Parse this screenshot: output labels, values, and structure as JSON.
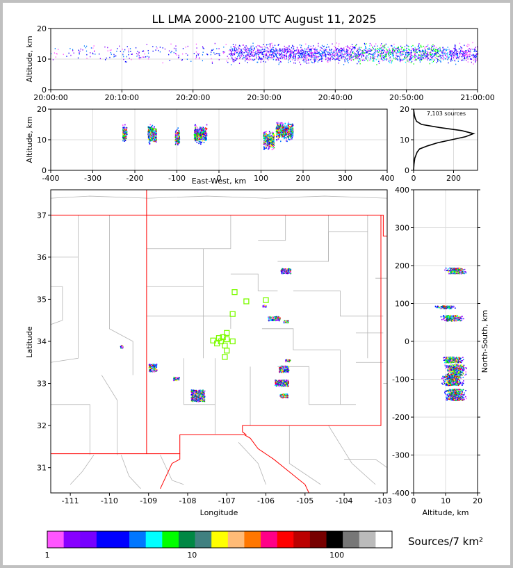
{
  "chart_data": [
    {
      "type": "scatter",
      "panel": "altitude-time",
      "title": "LL LMA 2000-2100 UTC August 11, 2025",
      "xlabel": "",
      "ylabel": "Altitude, km",
      "xlim": [
        0,
        60
      ],
      "ylim": [
        0,
        20
      ],
      "x_tick_labels": [
        "20:00:00",
        "20:10:00",
        "20:20:00",
        "20:30:00",
        "20:40:00",
        "20:50:00",
        "21:00:00"
      ],
      "x_tick_values": [
        0,
        10,
        20,
        30,
        40,
        50,
        60
      ],
      "y_ticks": [
        0,
        10,
        20
      ],
      "grid": true,
      "x_units": "minutes after 20:00:00 UTC"
    },
    {
      "type": "scatter",
      "panel": "altitude-eastwest",
      "xlabel": "East-West, km",
      "ylabel": "Altitude, km",
      "xlim": [
        -400,
        400
      ],
      "ylim": [
        0,
        20
      ],
      "x_ticks": [
        -400,
        -300,
        -200,
        -100,
        0,
        100,
        200,
        300,
        400
      ],
      "y_ticks": [
        0,
        10,
        20
      ],
      "grid": true,
      "clusters": [
        {
          "x_min": -230,
          "x_max": -220,
          "alt_center": 12
        },
        {
          "x_min": -170,
          "x_max": -150,
          "alt_center": 12
        },
        {
          "x_min": -105,
          "x_max": -95,
          "alt_center": 11
        },
        {
          "x_min": -60,
          "x_max": -30,
          "alt_center": 12
        },
        {
          "x_min": 105,
          "x_max": 130,
          "alt_center": 10
        },
        {
          "x_min": 135,
          "x_max": 175,
          "alt_center": 13
        }
      ]
    },
    {
      "type": "line",
      "panel": "altitude-histogram",
      "annotation": "7,103 sources",
      "xlim": [
        0,
        320
      ],
      "ylim": [
        0,
        20
      ],
      "x_ticks": [
        0,
        200
      ],
      "y_ticks": [
        0,
        10,
        20
      ],
      "grid": true,
      "altitude": [
        0,
        2,
        4,
        6,
        7,
        8,
        9,
        10,
        11,
        12,
        13,
        14,
        15,
        16,
        17,
        18,
        19,
        20
      ],
      "count": [
        0,
        2,
        6,
        18,
        30,
        70,
        120,
        190,
        260,
        300,
        240,
        130,
        40,
        15,
        8,
        4,
        2,
        0
      ]
    },
    {
      "type": "scatter",
      "panel": "plan-view-map",
      "xlabel": "Longitude",
      "ylabel": "Latitude",
      "xlim": [
        -111.5,
        -102.9
      ],
      "ylim": [
        30.4,
        37.6
      ],
      "x_ticks": [
        -111,
        -110,
        -109,
        -108,
        -107,
        -106,
        -105,
        -104,
        -103
      ],
      "y_ticks": [
        31,
        32,
        33,
        34,
        35,
        36,
        37
      ],
      "grid": true,
      "stations": [
        {
          "lon": -106.8,
          "lat": 35.17
        },
        {
          "lon": -106.5,
          "lat": 34.95
        },
        {
          "lon": -106.0,
          "lat": 34.98
        },
        {
          "lon": -106.85,
          "lat": 34.65
        },
        {
          "lon": -107.0,
          "lat": 34.2
        },
        {
          "lon": -107.1,
          "lat": 34.1
        },
        {
          "lon": -107.2,
          "lat": 34.08
        },
        {
          "lon": -107.0,
          "lat": 34.05
        },
        {
          "lon": -106.85,
          "lat": 34.0
        },
        {
          "lon": -107.15,
          "lat": 34.0
        },
        {
          "lon": -107.35,
          "lat": 34.02
        },
        {
          "lon": -107.25,
          "lat": 33.95
        },
        {
          "lon": -107.05,
          "lat": 33.9
        },
        {
          "lon": -107.0,
          "lat": 33.78
        },
        {
          "lon": -107.05,
          "lat": 33.63
        }
      ],
      "source_clusters": [
        {
          "lon": -105.5,
          "lat": 35.68,
          "w": 0.25,
          "h": 0.12
        },
        {
          "lon": -106.05,
          "lat": 34.85,
          "w": 0.08,
          "h": 0.05
        },
        {
          "lon": -105.8,
          "lat": 34.55,
          "w": 0.3,
          "h": 0.1
        },
        {
          "lon": -105.5,
          "lat": 34.48,
          "w": 0.12,
          "h": 0.06
        },
        {
          "lon": -109.7,
          "lat": 33.88,
          "w": 0.06,
          "h": 0.06
        },
        {
          "lon": -108.9,
          "lat": 33.38,
          "w": 0.2,
          "h": 0.18
        },
        {
          "lon": -108.3,
          "lat": 33.12,
          "w": 0.15,
          "h": 0.08
        },
        {
          "lon": -107.75,
          "lat": 32.72,
          "w": 0.35,
          "h": 0.28
        },
        {
          "lon": -105.45,
          "lat": 33.55,
          "w": 0.12,
          "h": 0.05
        },
        {
          "lon": -105.55,
          "lat": 33.35,
          "w": 0.25,
          "h": 0.15
        },
        {
          "lon": -105.6,
          "lat": 33.02,
          "w": 0.35,
          "h": 0.15
        },
        {
          "lon": -105.55,
          "lat": 32.72,
          "w": 0.2,
          "h": 0.1
        }
      ]
    },
    {
      "type": "scatter",
      "panel": "northsouth-altitude",
      "xlabel": "Altitude, km",
      "ylabel": "North-South, km",
      "xlim": [
        0,
        20
      ],
      "ylim": [
        -400,
        400
      ],
      "x_ticks": [
        0,
        10,
        20
      ],
      "y_ticks": [
        -400,
        -300,
        -200,
        -100,
        0,
        100,
        200,
        300,
        400
      ],
      "grid": true,
      "clusters": [
        {
          "ns_min": 180,
          "ns_max": 195,
          "alt_center": 13
        },
        {
          "ns_min": 88,
          "ns_max": 95,
          "alt_center": 10
        },
        {
          "ns_min": 55,
          "ns_max": 70,
          "alt_center": 12
        },
        {
          "ns_min": -55,
          "ns_max": -40,
          "alt_center": 12
        },
        {
          "ns_min": -90,
          "ns_max": -60,
          "alt_center": 13
        },
        {
          "ns_min": -115,
          "ns_max": -90,
          "alt_center": 12
        },
        {
          "ns_min": -155,
          "ns_max": -125,
          "alt_center": 13
        }
      ]
    },
    {
      "type": "colorbar",
      "label": "Sources/7 km²",
      "tick_labels": [
        "1",
        "10",
        "100"
      ],
      "colors": [
        "#ff55ff",
        "#8800ff",
        "#7700ff",
        "#0000ff",
        "#0000ff",
        "#0077ff",
        "#00ffff",
        "#00ff00",
        "#008844",
        "#408080",
        "#ffff00",
        "#ffbb77",
        "#ff7700",
        "#ff0088",
        "#ff0000",
        "#bb0000",
        "#770000",
        "#000000",
        "#777777",
        "#bbbbbb",
        "#ffffff"
      ]
    }
  ]
}
